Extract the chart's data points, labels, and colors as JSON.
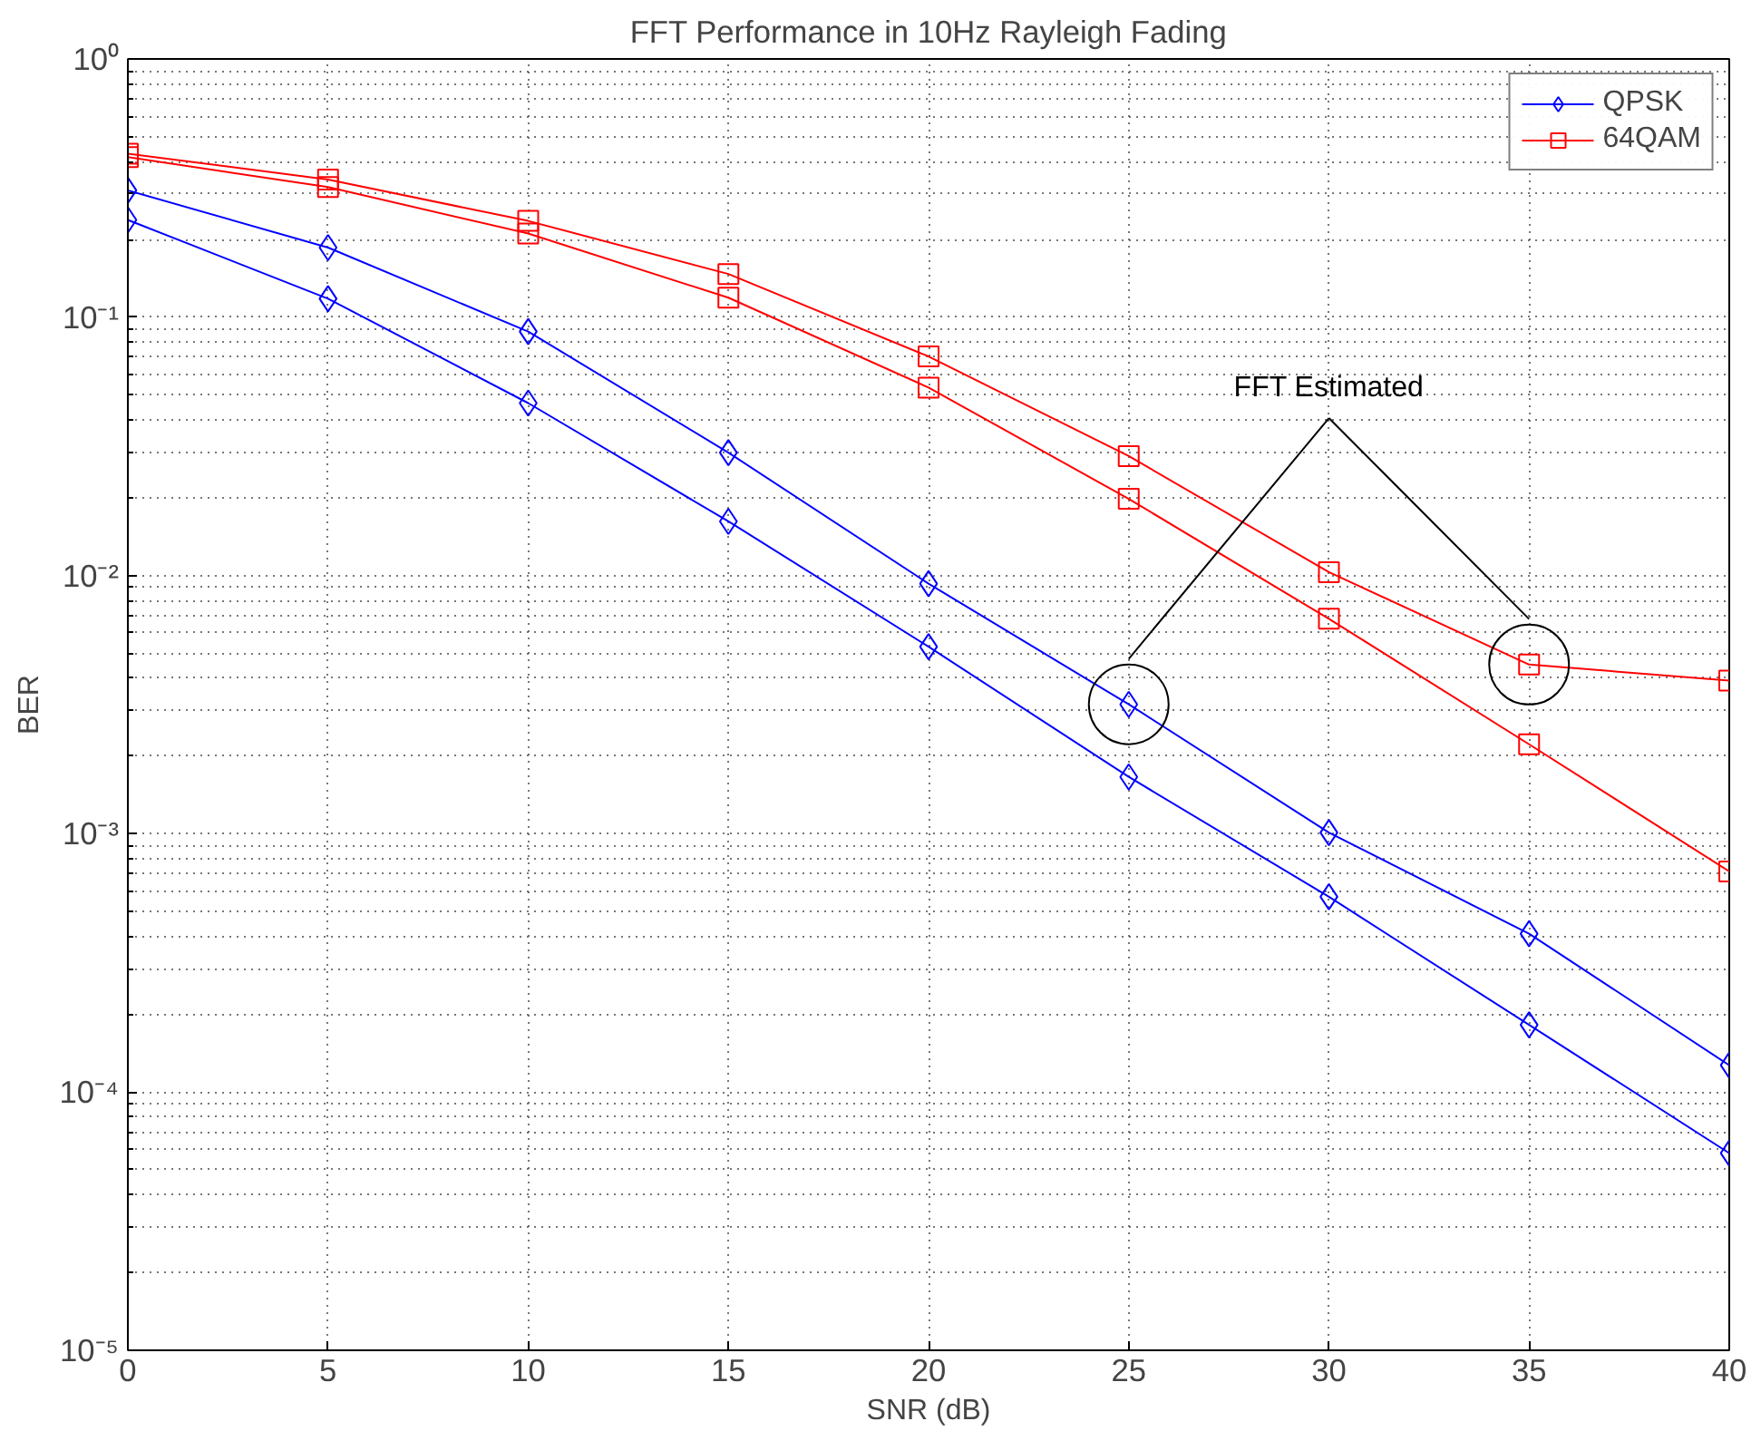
{
  "chart_data": {
    "type": "line",
    "title": "FFT Performance in 10Hz Rayleigh Fading",
    "xlabel": "SNR (dB)",
    "ylabel": "BER",
    "x": [
      0,
      5,
      10,
      15,
      20,
      25,
      30,
      35,
      40
    ],
    "series": [
      {
        "name": "QPSK",
        "color": "#0000ff",
        "marker": "diamond",
        "values": [
          0.31,
          0.186,
          0.088,
          0.0299,
          0.0093,
          0.00317,
          0.00101,
          0.00041,
          0.000127
        ]
      },
      {
        "name": "64QAM",
        "color": "#ff0000",
        "marker": "square",
        "values": [
          0.43,
          0.341,
          0.236,
          0.147,
          0.0705,
          0.029,
          0.0103,
          0.00452,
          0.00392
        ]
      },
      {
        "color": "#0000ff",
        "marker": "diamond",
        "values": [
          0.238,
          0.118,
          0.0465,
          0.0162,
          0.0053,
          0.00166,
          0.00057,
          0.000182,
          5.8e-05
        ]
      },
      {
        "color": "#ff0000",
        "marker": "square",
        "values": [
          0.417,
          0.319,
          0.211,
          0.119,
          0.0534,
          0.0198,
          0.0068,
          0.00222,
          0.000715
        ]
      }
    ],
    "annotations": [
      "FFT Estimated"
    ],
    "log": "y",
    "xlim": [
      0,
      40
    ],
    "xticks": [
      0,
      5,
      10,
      15,
      20,
      25,
      30,
      35,
      40
    ],
    "ylim": [
      1e-05,
      1
    ],
    "yticks": [
      {
        "value": 1e-05,
        "label": "10⁻⁵"
      },
      {
        "value": 0.0001,
        "label": "10⁻⁴"
      },
      {
        "value": 0.001,
        "label": "10⁻³"
      },
      {
        "value": 0.01,
        "label": "10⁻²"
      },
      {
        "value": 0.1,
        "label": "10⁻¹"
      },
      {
        "value": 1,
        "label": "10⁰"
      }
    ],
    "grid": true,
    "legend": "top right",
    "line_style": "solid"
  }
}
